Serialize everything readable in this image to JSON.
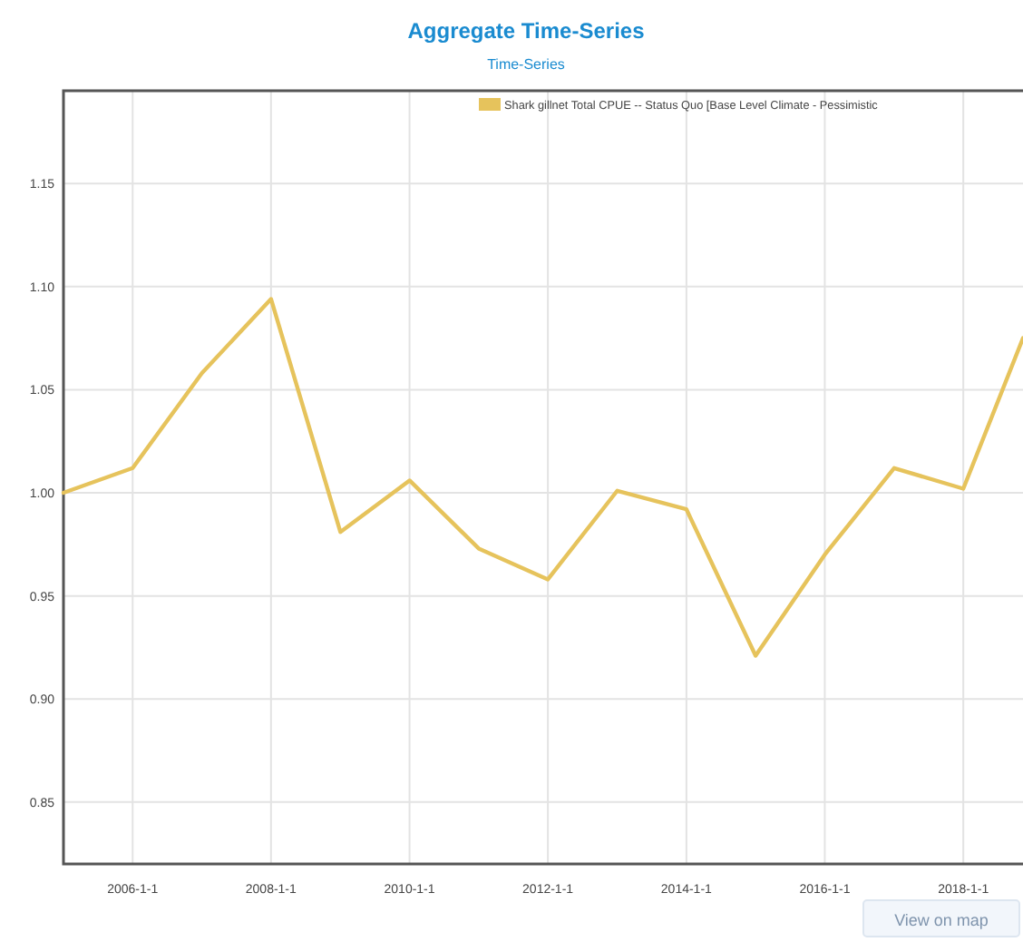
{
  "chart_data": {
    "type": "line",
    "title": "Aggregate Time-Series",
    "subtitle": "Time-Series",
    "x": [
      "2005-01-01",
      "2006-01-01",
      "2007-01-01",
      "2008-01-01",
      "2009-01-01",
      "2010-01-01",
      "2011-01-01",
      "2012-01-01",
      "2013-01-01",
      "2014-01-01",
      "2015-01-01",
      "2016-01-01",
      "2017-01-01",
      "2018-01-01",
      "2018-11-12"
    ],
    "series": [
      {
        "name": "Shark gillnet Total CPUE -- Status Quo [Base Level Climate - Pessimistic",
        "color": "#e6c35c",
        "values": [
          1.0,
          1.012,
          1.058,
          1.094,
          0.981,
          1.006,
          0.973,
          0.958,
          1.001,
          0.992,
          0.921,
          0.97,
          1.012,
          1.002,
          1.075
        ]
      }
    ],
    "xlim": [
      "2005-01-01",
      "2018-11-12"
    ],
    "xticks": [
      {
        "value": "2006-01-01",
        "label": "2006-1-1"
      },
      {
        "value": "2008-01-01",
        "label": "2008-1-1"
      },
      {
        "value": "2010-01-01",
        "label": "2010-1-1"
      },
      {
        "value": "2012-01-01",
        "label": "2012-1-1"
      },
      {
        "value": "2014-01-01",
        "label": "2014-1-1"
      },
      {
        "value": "2016-01-01",
        "label": "2016-1-1"
      },
      {
        "value": "2018-01-01",
        "label": "2018-1-1"
      }
    ],
    "ylim": [
      0.82,
      1.195
    ],
    "yticks": [
      0.85,
      {
        "value": 0.9,
        "label": "0.90"
      },
      0.95,
      {
        "value": 1,
        "label": "1.00"
      },
      1.05,
      {
        "value": 1.1,
        "label": "1.10"
      },
      1.15
    ],
    "grid": true,
    "legend": "top right",
    "marker": "none",
    "line_style": "solid",
    "annotations": [
      "View on map"
    ]
  }
}
